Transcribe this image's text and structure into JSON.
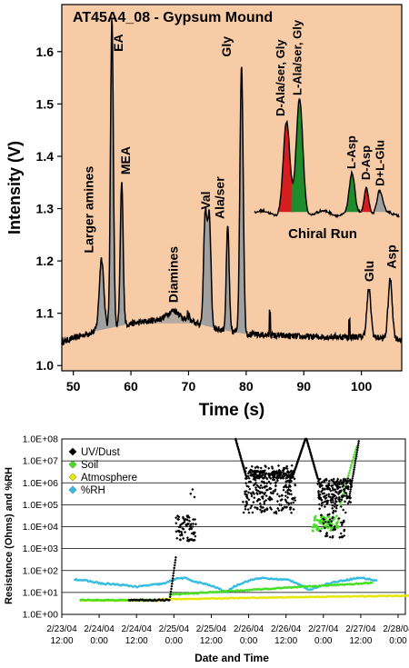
{
  "chart_data": [
    {
      "type": "line",
      "title": "AT45A4_08 - Gypsum Mound",
      "xlabel": "Time (s)",
      "ylabel": "Intensity (V)",
      "xlim": [
        48,
        107
      ],
      "ylim": [
        0.99,
        1.69
      ],
      "xticks": [
        "50",
        "60",
        "70",
        "80",
        "90",
        "100"
      ],
      "yticks": [
        "1.0",
        "1.1",
        "1.2",
        "1.3",
        "1.4",
        "1.5",
        "1.6"
      ],
      "background": "#f7cba6",
      "line_color": "#000000",
      "fill_color": "#a0a0a0",
      "grid": false,
      "baseline": [
        [
          48,
          1.045
        ],
        [
          55,
          1.07
        ],
        [
          60,
          1.08
        ],
        [
          66,
          1.09
        ],
        [
          70,
          1.085
        ],
        [
          75,
          1.07
        ],
        [
          80,
          1.06
        ],
        [
          90,
          1.055
        ],
        [
          100,
          1.055
        ],
        [
          107,
          1.05
        ]
      ],
      "peaks": [
        {
          "name": "Larger amines",
          "x": 54.9,
          "y": 1.205
        },
        {
          "name": "EA",
          "x": 56.7,
          "y": 1.66
        },
        {
          "name": "MEA",
          "x": 58.4,
          "y": 1.35
        },
        {
          "name": "Diamines",
          "x": 67.5,
          "y": 1.105
        },
        {
          "name": "Val",
          "x": 72.9,
          "y": 1.29
        },
        {
          "name": "Ala/ser",
          "x": 73.6,
          "y": 1.285
        },
        {
          "name": "",
          "x": 76.8,
          "y": 1.265
        },
        {
          "name": "Gly",
          "x": 79.2,
          "y": 1.575
        },
        {
          "name": "Glu",
          "x": 101.3,
          "y": 1.145
        },
        {
          "name": "Asp",
          "x": 105,
          "y": 1.165
        }
      ],
      "inset": {
        "title": "Chiral Run",
        "xlim": [
          0,
          100
        ],
        "ylim": [
          0,
          1
        ],
        "line_color": "#000000",
        "peaks": [
          {
            "name": "D-Ala/ser, Gly",
            "x": 22,
            "y": 0.74,
            "color": "#d61e1e"
          },
          {
            "name": "L-Ala/ser, Gly",
            "x": 31,
            "y": 0.93,
            "color": "#1e8c2a"
          },
          {
            "name": "L-Asp",
            "x": 67,
            "y": 0.31,
            "color": "#1e8c2a"
          },
          {
            "name": "D-Asp",
            "x": 77,
            "y": 0.22,
            "color": "#d61e1e"
          },
          {
            "name": "D+L-Glu",
            "x": 86,
            "y": 0.17,
            "color": "#a0a0a0"
          }
        ]
      }
    },
    {
      "type": "scatter",
      "title": "",
      "xlabel": "Date and Time",
      "ylabel": "Resistance (Ohms) and %RH",
      "yscale": "log",
      "ylim": [
        1,
        100000000
      ],
      "yticks": [
        "1.0E+00",
        "1.0E+01",
        "1.0E+02",
        "1.0E+03",
        "1.0E+04",
        "1.0E+05",
        "1.0E+06",
        "1.0E+07",
        "1.0E+08"
      ],
      "xlim": [
        0,
        10
      ],
      "xticks": [
        {
          "date": "2/23/04",
          "time": "12:00"
        },
        {
          "date": "2/24/04",
          "time": "0:00"
        },
        {
          "date": "2/24/04",
          "time": "12:00"
        },
        {
          "date": "2/25/04",
          "time": "0:00"
        },
        {
          "date": "2/25/04",
          "time": "12:00"
        },
        {
          "date": "2/26/04",
          "time": "0:00"
        },
        {
          "date": "2/26/04",
          "time": "12:00"
        },
        {
          "date": "2/27/04",
          "time": "0:00"
        },
        {
          "date": "2/27/04",
          "time": "12:00"
        },
        {
          "date": "2/28/04",
          "time": "0:00"
        }
      ],
      "grid": true,
      "legend_position": "top-left",
      "series": [
        {
          "name": "UV/Dust",
          "color": "#000000",
          "marker": "diamond"
        },
        {
          "name": "Soil",
          "color": "#44dd22",
          "marker": "diamond"
        },
        {
          "name": "Atmosphere",
          "color": "#e6e600",
          "marker": "diamond"
        },
        {
          "name": "%RH",
          "color": "#33bbe0",
          "marker": "diamond"
        }
      ]
    }
  ]
}
